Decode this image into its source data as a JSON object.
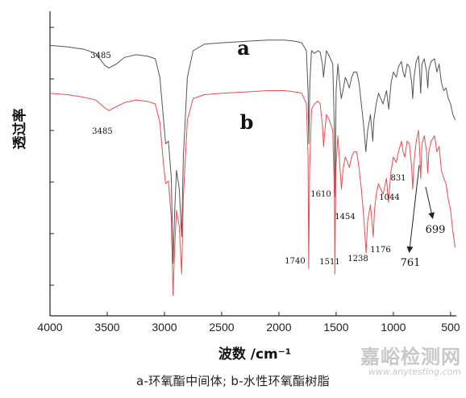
{
  "chart_data": {
    "type": "line",
    "xlabel": "波数 /cm⁻¹",
    "ylabel": "透过率",
    "xlim": [
      4000,
      450
    ],
    "x_reversed": true,
    "x_ticks": [
      4000,
      3500,
      3000,
      2500,
      2000,
      1500,
      1000,
      500
    ],
    "grid": false,
    "series": [
      {
        "name": "a",
        "color": "#555555",
        "points": [
          [
            4000,
            0.92
          ],
          [
            3850,
            0.915
          ],
          [
            3700,
            0.905
          ],
          [
            3600,
            0.89
          ],
          [
            3520,
            0.845
          ],
          [
            3485,
            0.835
          ],
          [
            3420,
            0.85
          ],
          [
            3350,
            0.875
          ],
          [
            3250,
            0.885
          ],
          [
            3150,
            0.88
          ],
          [
            3080,
            0.87
          ],
          [
            3040,
            0.8
          ],
          [
            3010,
            0.65
          ],
          [
            2990,
            0.55
          ],
          [
            2965,
            0.56
          ],
          [
            2940,
            0.42
          ],
          [
            2925,
            0.1
          ],
          [
            2910,
            0.3
          ],
          [
            2895,
            0.45
          ],
          [
            2870,
            0.38
          ],
          [
            2850,
            0.2
          ],
          [
            2835,
            0.5
          ],
          [
            2800,
            0.8
          ],
          [
            2750,
            0.9
          ],
          [
            2650,
            0.925
          ],
          [
            2500,
            0.93
          ],
          [
            2300,
            0.935
          ],
          [
            2100,
            0.94
          ],
          [
            1950,
            0.94
          ],
          [
            1850,
            0.935
          ],
          [
            1800,
            0.93
          ],
          [
            1760,
            0.9
          ],
          [
            1745,
            0.75
          ],
          [
            1738,
            0.55
          ],
          [
            1730,
            0.78
          ],
          [
            1715,
            0.9
          ],
          [
            1690,
            0.89
          ],
          [
            1660,
            0.9
          ],
          [
            1640,
            0.895
          ],
          [
            1620,
            0.85
          ],
          [
            1610,
            0.8
          ],
          [
            1598,
            0.85
          ],
          [
            1585,
            0.9
          ],
          [
            1560,
            0.88
          ],
          [
            1530,
            0.85
          ],
          [
            1515,
            0.6
          ],
          [
            1510,
            0.35
          ],
          [
            1500,
            0.75
          ],
          [
            1485,
            0.85
          ],
          [
            1470,
            0.78
          ],
          [
            1455,
            0.72
          ],
          [
            1440,
            0.75
          ],
          [
            1420,
            0.8
          ],
          [
            1400,
            0.78
          ],
          [
            1385,
            0.76
          ],
          [
            1365,
            0.8
          ],
          [
            1345,
            0.82
          ],
          [
            1320,
            0.82
          ],
          [
            1300,
            0.78
          ],
          [
            1280,
            0.7
          ],
          [
            1260,
            0.62
          ],
          [
            1240,
            0.52
          ],
          [
            1225,
            0.6
          ],
          [
            1200,
            0.66
          ],
          [
            1180,
            0.56
          ],
          [
            1170,
            0.64
          ],
          [
            1150,
            0.7
          ],
          [
            1130,
            0.74
          ],
          [
            1110,
            0.72
          ],
          [
            1090,
            0.7
          ],
          [
            1060,
            0.75
          ],
          [
            1040,
            0.68
          ],
          [
            1020,
            0.78
          ],
          [
            1000,
            0.82
          ],
          [
            975,
            0.8
          ],
          [
            955,
            0.84
          ],
          [
            930,
            0.86
          ],
          [
            915,
            0.82
          ],
          [
            900,
            0.8
          ],
          [
            880,
            0.85
          ],
          [
            860,
            0.84
          ],
          [
            840,
            0.78
          ],
          [
            831,
            0.72
          ],
          [
            820,
            0.8
          ],
          [
            800,
            0.86
          ],
          [
            780,
            0.88
          ],
          [
            770,
            0.82
          ],
          [
            761,
            0.74
          ],
          [
            750,
            0.85
          ],
          [
            730,
            0.87
          ],
          [
            710,
            0.82
          ],
          [
            699,
            0.76
          ],
          [
            690,
            0.83
          ],
          [
            670,
            0.86
          ],
          [
            640,
            0.87
          ],
          [
            620,
            0.82
          ],
          [
            600,
            0.85
          ],
          [
            580,
            0.78
          ],
          [
            560,
            0.75
          ],
          [
            540,
            0.76
          ],
          [
            520,
            0.72
          ],
          [
            500,
            0.7
          ],
          [
            480,
            0.66
          ],
          [
            460,
            0.64
          ]
        ]
      },
      {
        "name": "b",
        "color": "#e35050",
        "points": [
          [
            4000,
            0.74
          ],
          [
            3850,
            0.735
          ],
          [
            3700,
            0.725
          ],
          [
            3600,
            0.715
          ],
          [
            3520,
            0.685
          ],
          [
            3485,
            0.675
          ],
          [
            3420,
            0.69
          ],
          [
            3350,
            0.705
          ],
          [
            3250,
            0.715
          ],
          [
            3150,
            0.71
          ],
          [
            3080,
            0.7
          ],
          [
            3040,
            0.63
          ],
          [
            3010,
            0.48
          ],
          [
            2990,
            0.4
          ],
          [
            2965,
            0.41
          ],
          [
            2940,
            0.27
          ],
          [
            2925,
            -0.02
          ],
          [
            2910,
            0.16
          ],
          [
            2895,
            0.3
          ],
          [
            2870,
            0.24
          ],
          [
            2850,
            0.06
          ],
          [
            2835,
            0.35
          ],
          [
            2800,
            0.64
          ],
          [
            2750,
            0.72
          ],
          [
            2650,
            0.735
          ],
          [
            2500,
            0.74
          ],
          [
            2300,
            0.745
          ],
          [
            2100,
            0.75
          ],
          [
            1950,
            0.75
          ],
          [
            1850,
            0.745
          ],
          [
            1800,
            0.74
          ],
          [
            1760,
            0.7
          ],
          [
            1745,
            0.5
          ],
          [
            1740,
            0.08
          ],
          [
            1732,
            0.45
          ],
          [
            1715,
            0.68
          ],
          [
            1690,
            0.7
          ],
          [
            1660,
            0.71
          ],
          [
            1640,
            0.7
          ],
          [
            1620,
            0.62
          ],
          [
            1610,
            0.54
          ],
          [
            1598,
            0.6
          ],
          [
            1585,
            0.66
          ],
          [
            1560,
            0.64
          ],
          [
            1530,
            0.6
          ],
          [
            1515,
            0.35
          ],
          [
            1511,
            0.06
          ],
          [
            1503,
            0.45
          ],
          [
            1485,
            0.58
          ],
          [
            1470,
            0.48
          ],
          [
            1454,
            0.38
          ],
          [
            1440,
            0.45
          ],
          [
            1420,
            0.5
          ],
          [
            1400,
            0.48
          ],
          [
            1385,
            0.46
          ],
          [
            1365,
            0.5
          ],
          [
            1345,
            0.52
          ],
          [
            1320,
            0.52
          ],
          [
            1300,
            0.46
          ],
          [
            1280,
            0.38
          ],
          [
            1260,
            0.28
          ],
          [
            1238,
            0.14
          ],
          [
            1225,
            0.26
          ],
          [
            1200,
            0.32
          ],
          [
            1176,
            0.2
          ],
          [
            1165,
            0.3
          ],
          [
            1150,
            0.36
          ],
          [
            1130,
            0.4
          ],
          [
            1110,
            0.38
          ],
          [
            1090,
            0.36
          ],
          [
            1060,
            0.42
          ],
          [
            1044,
            0.33
          ],
          [
            1020,
            0.45
          ],
          [
            1000,
            0.5
          ],
          [
            975,
            0.48
          ],
          [
            955,
            0.52
          ],
          [
            930,
            0.56
          ],
          [
            915,
            0.52
          ],
          [
            900,
            0.5
          ],
          [
            880,
            0.56
          ],
          [
            860,
            0.55
          ],
          [
            840,
            0.46
          ],
          [
            831,
            0.38
          ],
          [
            820,
            0.48
          ],
          [
            800,
            0.56
          ],
          [
            780,
            0.6
          ],
          [
            770,
            0.52
          ],
          [
            761,
            0.42
          ],
          [
            750,
            0.55
          ],
          [
            730,
            0.58
          ],
          [
            710,
            0.52
          ],
          [
            699,
            0.44
          ],
          [
            690,
            0.52
          ],
          [
            670,
            0.56
          ],
          [
            640,
            0.58
          ],
          [
            620,
            0.52
          ],
          [
            600,
            0.54
          ],
          [
            580,
            0.45
          ],
          [
            560,
            0.42
          ],
          [
            540,
            0.4
          ],
          [
            520,
            0.34
          ],
          [
            500,
            0.3
          ],
          [
            480,
            0.22
          ],
          [
            460,
            0.16
          ]
        ]
      }
    ],
    "series_labels": [
      "a",
      "b"
    ],
    "annotations": [
      {
        "text": "3485",
        "size": "small"
      },
      {
        "text": "3485",
        "size": "small"
      },
      {
        "text": "1740",
        "size": "small"
      },
      {
        "text": "1610",
        "size": "small"
      },
      {
        "text": "1511",
        "size": "small"
      },
      {
        "text": "1454",
        "size": "small"
      },
      {
        "text": "1238",
        "size": "small"
      },
      {
        "text": "1176",
        "size": "small"
      },
      {
        "text": "1044",
        "size": "small"
      },
      {
        "text": "831",
        "size": "small"
      },
      {
        "text": "761",
        "size": "large"
      },
      {
        "text": "699",
        "size": "large"
      }
    ]
  },
  "caption": "a-环氧酯中间体; b-水性环氧酯树脂",
  "watermark": {
    "cn": "嘉峪检测网",
    "url": "www.anytesting.com"
  }
}
